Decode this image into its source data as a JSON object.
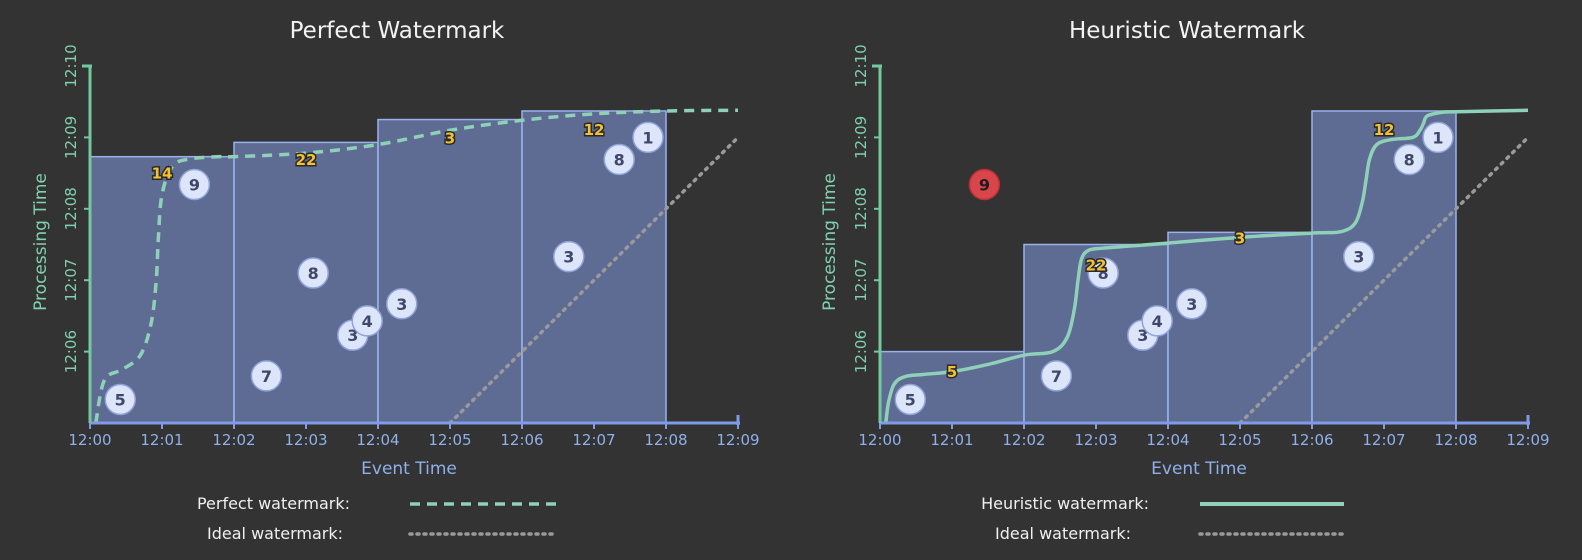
{
  "colors": {
    "background": "#333333",
    "pane_fill": "#6f81b9",
    "pane_stroke": "#9ab2ec",
    "x_axis": "#7f9be6",
    "y_axis": "#72c9a0",
    "perfect_watermark": "#8fd0b8",
    "heuristic_watermark": "#8fd0b8",
    "ideal_watermark": "#9a9a9a",
    "datum_fill": "#dde5fb",
    "late_datum_fill": "#d9454a",
    "aggregate_text": "#f2c232"
  },
  "chart_data": [
    {
      "type": "scatter",
      "title": "Perfect Watermark",
      "xlabel": "Event Time",
      "ylabel": "Processing Time",
      "x_ticks": [
        "12:00",
        "12:01",
        "12:02",
        "12:03",
        "12:04",
        "12:05",
        "12:06",
        "12:07",
        "12:08",
        "12:09"
      ],
      "y_ticks": [
        "12:06",
        "12:07",
        "12:08",
        "12:09",
        "12:10"
      ],
      "xlim": [
        0,
        9
      ],
      "ylim": [
        5,
        10
      ],
      "panes": [
        {
          "x_start": 0,
          "x_end": 2,
          "y_top": 8.73
        },
        {
          "x_start": 2,
          "x_end": 4,
          "y_top": 8.93
        },
        {
          "x_start": 4,
          "x_end": 6,
          "y_top": 9.25
        },
        {
          "x_start": 6,
          "x_end": 8,
          "y_top": 9.37
        }
      ],
      "data_points": [
        {
          "label": "5",
          "x": 0.42,
          "y": 5.33
        },
        {
          "label": "7",
          "x": 2.45,
          "y": 5.66
        },
        {
          "label": "3",
          "x": 3.65,
          "y": 6.23
        },
        {
          "label": "4",
          "x": 3.85,
          "y": 6.43
        },
        {
          "label": "3",
          "x": 4.33,
          "y": 6.67
        },
        {
          "label": "8",
          "x": 3.1,
          "y": 7.1
        },
        {
          "label": "9",
          "x": 1.45,
          "y": 8.34
        },
        {
          "label": "3",
          "x": 6.65,
          "y": 7.33
        },
        {
          "label": "8",
          "x": 7.35,
          "y": 8.69
        },
        {
          "label": "1",
          "x": 7.75,
          "y": 9.0
        }
      ],
      "late_points": [],
      "aggregates": [
        {
          "label": "14",
          "x": 1.0,
          "y": 8.51
        },
        {
          "label": "22",
          "x": 3.0,
          "y": 8.7
        },
        {
          "label": "3",
          "x": 5.0,
          "y": 9.0
        },
        {
          "label": "12",
          "x": 7.0,
          "y": 9.12
        }
      ],
      "watermark_series": {
        "name": "Perfect watermark",
        "style": "dashed",
        "x": [
          0.08,
          0.2,
          0.45,
          0.7,
          0.85,
          0.92,
          0.95,
          1.0,
          1.15,
          1.4,
          1.8,
          2.0,
          3.0,
          4.0,
          5.0,
          6.0,
          7.0,
          8.0,
          9.0
        ],
        "y": [
          5.0,
          5.6,
          5.75,
          5.95,
          6.4,
          7.0,
          7.6,
          8.2,
          8.6,
          8.7,
          8.73,
          8.73,
          8.78,
          8.9,
          9.1,
          9.24,
          9.33,
          9.37,
          9.38
        ]
      },
      "ideal_series": {
        "name": "Ideal watermark",
        "style": "dotted",
        "x": [
          5.0,
          9.0
        ],
        "y": [
          5.0,
          9.0
        ]
      },
      "legend": [
        {
          "label": "Perfect watermark:",
          "style": "dashed"
        },
        {
          "label": "Ideal watermark:",
          "style": "dotted"
        }
      ]
    },
    {
      "type": "scatter",
      "title": "Heuristic Watermark",
      "xlabel": "Event Time",
      "ylabel": "Processing Time",
      "x_ticks": [
        "12:00",
        "12:01",
        "12:02",
        "12:03",
        "12:04",
        "12:05",
        "12:06",
        "12:07",
        "12:08",
        "12:09"
      ],
      "y_ticks": [
        "12:06",
        "12:07",
        "12:08",
        "12:09",
        "12:10"
      ],
      "xlim": [
        0,
        9
      ],
      "ylim": [
        5,
        10
      ],
      "panes": [
        {
          "x_start": 0,
          "x_end": 2,
          "y_top": 6.0
        },
        {
          "x_start": 2,
          "x_end": 4,
          "y_top": 7.5
        },
        {
          "x_start": 4,
          "x_end": 6,
          "y_top": 7.67
        },
        {
          "x_start": 6,
          "x_end": 8,
          "y_top": 9.37
        }
      ],
      "data_points": [
        {
          "label": "5",
          "x": 0.42,
          "y": 5.33
        },
        {
          "label": "7",
          "x": 2.45,
          "y": 5.66
        },
        {
          "label": "3",
          "x": 3.65,
          "y": 6.23
        },
        {
          "label": "4",
          "x": 3.85,
          "y": 6.43
        },
        {
          "label": "3",
          "x": 4.33,
          "y": 6.67
        },
        {
          "label": "8",
          "x": 3.1,
          "y": 7.1
        },
        {
          "label": "3",
          "x": 6.65,
          "y": 7.33
        },
        {
          "label": "8",
          "x": 7.35,
          "y": 8.69
        },
        {
          "label": "1",
          "x": 7.75,
          "y": 9.0
        }
      ],
      "late_points": [
        {
          "label": "9",
          "x": 1.45,
          "y": 8.34
        }
      ],
      "aggregates": [
        {
          "label": "5",
          "x": 1.0,
          "y": 5.73
        },
        {
          "label": "22",
          "x": 3.0,
          "y": 7.22
        },
        {
          "label": "3",
          "x": 5.0,
          "y": 7.6
        },
        {
          "label": "12",
          "x": 7.0,
          "y": 9.12
        }
      ],
      "watermark_series": {
        "name": "Heuristic watermark",
        "style": "solid",
        "x": [
          0.08,
          0.12,
          0.2,
          0.35,
          0.6,
          1.0,
          1.5,
          2.0,
          2.4,
          2.6,
          2.7,
          2.75,
          2.8,
          2.9,
          3.1,
          3.5,
          4.0,
          5.0,
          6.0,
          6.4,
          6.6,
          6.7,
          6.75,
          6.8,
          6.9,
          7.1,
          7.4,
          7.5,
          7.55,
          7.6,
          7.8,
          8.0,
          9.0
        ],
        "y": [
          5.0,
          5.3,
          5.55,
          5.65,
          5.68,
          5.72,
          5.82,
          5.95,
          6.0,
          6.2,
          6.6,
          7.0,
          7.3,
          7.42,
          7.45,
          7.48,
          7.52,
          7.6,
          7.66,
          7.68,
          7.8,
          8.1,
          8.4,
          8.7,
          8.9,
          8.97,
          9.0,
          9.1,
          9.2,
          9.3,
          9.35,
          9.36,
          9.38
        ]
      },
      "ideal_series": {
        "name": "Ideal watermark",
        "style": "dotted",
        "x": [
          5.0,
          9.0
        ],
        "y": [
          5.0,
          9.0
        ]
      },
      "legend": [
        {
          "label": "Heuristic watermark:",
          "style": "solid"
        },
        {
          "label": "Ideal watermark:",
          "style": "dotted"
        }
      ]
    }
  ]
}
